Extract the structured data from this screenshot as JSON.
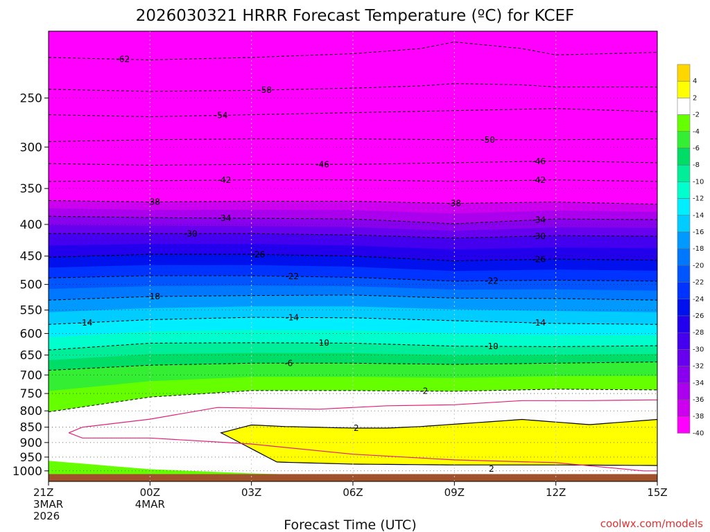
{
  "title": "2026030321 HRRR Forecast Temperature (ºC) for KCEF",
  "xlabel": "Forecast Time (UTC)",
  "credit": "coolwx.com/models",
  "chart_data": {
    "type": "heatmap",
    "title": "2026030321 HRRR Forecast Temperature (ºC) for KCEF",
    "xlabel": "Forecast Time (UTC)",
    "ylabel": "",
    "y_scale": "log",
    "y_reversed": true,
    "ylim": [
      1040,
      195
    ],
    "xlim": [
      0,
      18
    ],
    "x_ticks": [
      {
        "x": 0,
        "lines": [
          "21Z",
          "3MAR",
          "2026"
        ]
      },
      {
        "x": 3,
        "lines": [
          "00Z",
          "4MAR"
        ]
      },
      {
        "x": 6,
        "lines": [
          "03Z"
        ]
      },
      {
        "x": 9,
        "lines": [
          "06Z"
        ]
      },
      {
        "x": 12,
        "lines": [
          "09Z"
        ]
      },
      {
        "x": 15,
        "lines": [
          "12Z"
        ]
      },
      {
        "x": 18,
        "lines": [
          "15Z"
        ]
      }
    ],
    "y_ticks": [
      250,
      300,
      350,
      400,
      450,
      500,
      550,
      600,
      650,
      700,
      750,
      800,
      850,
      900,
      950,
      1000
    ],
    "grid": "dotted",
    "ground_color": "#a0522d",
    "colorbar": {
      "placement": "right",
      "levels": [
        {
          "label": "4",
          "color": "#ffd700"
        },
        {
          "label": "2",
          "color": "#ffff00"
        },
        {
          "label": "-2",
          "color": "#ffffff"
        },
        {
          "label": "-4",
          "color": "#66ff00"
        },
        {
          "label": "-6",
          "color": "#33ee33"
        },
        {
          "label": "-8",
          "color": "#00dd66"
        },
        {
          "label": "-10",
          "color": "#00ee99"
        },
        {
          "label": "-12",
          "color": "#00ffcc"
        },
        {
          "label": "-14",
          "color": "#00eeff"
        },
        {
          "label": "-16",
          "color": "#00ccff"
        },
        {
          "label": "-18",
          "color": "#0099ff"
        },
        {
          "label": "-20",
          "color": "#0077ff"
        },
        {
          "label": "-22",
          "color": "#0055ff"
        },
        {
          "label": "-24",
          "color": "#0033ff"
        },
        {
          "label": "-26",
          "color": "#0011ee"
        },
        {
          "label": "-28",
          "color": "#2200ee"
        },
        {
          "label": "-30",
          "color": "#4400ee"
        },
        {
          "label": "-32",
          "color": "#6600ee"
        },
        {
          "label": "-34",
          "color": "#8800ee"
        },
        {
          "label": "-36",
          "color": "#aa00ee"
        },
        {
          "label": "-38",
          "color": "#cc00ee"
        },
        {
          "label": "-40",
          "color": "#ff00ff"
        }
      ]
    },
    "isotherms": [
      {
        "label": "-62",
        "label_x": 2.2,
        "points": [
          [
            0,
            215
          ],
          [
            3,
            217
          ],
          [
            6,
            215
          ],
          [
            9,
            212
          ],
          [
            11,
            208
          ],
          [
            12,
            203
          ],
          [
            14,
            208
          ],
          [
            15,
            213
          ],
          [
            18,
            211
          ]
        ]
      },
      {
        "label": "-58",
        "label_x": 6.4,
        "points": [
          [
            0,
            242
          ],
          [
            3,
            244
          ],
          [
            6,
            243
          ],
          [
            9,
            241
          ],
          [
            11,
            239
          ],
          [
            12,
            237
          ],
          [
            14,
            238
          ],
          [
            15,
            240
          ],
          [
            18,
            240
          ]
        ]
      },
      {
        "label": "-54",
        "label_x": 5.1,
        "points": [
          [
            0,
            266
          ],
          [
            3,
            268
          ],
          [
            6,
            266
          ],
          [
            9,
            264
          ],
          [
            12,
            262
          ],
          [
            15,
            260
          ],
          [
            18,
            263
          ]
        ]
      },
      {
        "label": "-50",
        "label_x": 13,
        "points": [
          [
            0,
            294
          ],
          [
            3,
            292
          ],
          [
            6,
            291
          ],
          [
            9,
            291
          ],
          [
            12,
            292
          ],
          [
            15,
            292
          ],
          [
            18,
            291
          ]
        ]
      },
      {
        "label": "-46",
        "label_x": 8.1,
        "points": [
          [
            0,
            319
          ],
          [
            3,
            321
          ],
          [
            6,
            320
          ],
          [
            9,
            320
          ],
          [
            12,
            318
          ],
          [
            15,
            316
          ],
          [
            18,
            318
          ]
        ]
      },
      {
        "label": "-46",
        "label_x": 14.5,
        "points": []
      },
      {
        "label": "-42",
        "label_x": 5.2,
        "points": [
          [
            0,
            341
          ],
          [
            3,
            340
          ],
          [
            6,
            339
          ],
          [
            9,
            339
          ],
          [
            12,
            341
          ],
          [
            15,
            339
          ],
          [
            18,
            341
          ]
        ]
      },
      {
        "label": "-42",
        "label_x": 14.5,
        "points": []
      },
      {
        "label": "-38",
        "label_x": 3.1,
        "points": [
          [
            0,
            366
          ],
          [
            3,
            368
          ],
          [
            6,
            367
          ],
          [
            9,
            367
          ],
          [
            12,
            370
          ],
          [
            15,
            368
          ],
          [
            18,
            371
          ]
        ]
      },
      {
        "label": "-38",
        "label_x": 12,
        "points": []
      },
      {
        "label": "-34",
        "label_x": 5.2,
        "points": [
          [
            0,
            388
          ],
          [
            3,
            390
          ],
          [
            6,
            391
          ],
          [
            9,
            392
          ],
          [
            12,
            399
          ],
          [
            15,
            392
          ],
          [
            18,
            393
          ]
        ]
      },
      {
        "label": "-34",
        "label_x": 14.5,
        "points": []
      },
      {
        "label": "-30",
        "label_x": 4.2,
        "points": [
          [
            0,
            414
          ],
          [
            3,
            414
          ],
          [
            6,
            414
          ],
          [
            9,
            416
          ],
          [
            12,
            421
          ],
          [
            15,
            417
          ],
          [
            18,
            418
          ]
        ]
      },
      {
        "label": "-30",
        "label_x": 14.5,
        "points": []
      },
      {
        "label": "-26",
        "label_x": 6.2,
        "points": [
          [
            0,
            452
          ],
          [
            3,
            447
          ],
          [
            6,
            447
          ],
          [
            9,
            450
          ],
          [
            12,
            458
          ],
          [
            15,
            455
          ],
          [
            18,
            457
          ]
        ]
      },
      {
        "label": "-26",
        "label_x": 14.5,
        "points": []
      },
      {
        "label": "-22",
        "label_x": 7.2,
        "points": [
          [
            0,
            488
          ],
          [
            3,
            484
          ],
          [
            6,
            484
          ],
          [
            9,
            487
          ],
          [
            12,
            494
          ],
          [
            15,
            492
          ],
          [
            18,
            494
          ]
        ]
      },
      {
        "label": "-22",
        "label_x": 13.1,
        "points": []
      },
      {
        "label": "-18",
        "label_x": 3.1,
        "points": [
          [
            0,
            530
          ],
          [
            3,
            523
          ],
          [
            6,
            521
          ],
          [
            9,
            520
          ],
          [
            12,
            526
          ],
          [
            15,
            527
          ],
          [
            18,
            530
          ]
        ]
      },
      {
        "label": "-14",
        "label_x": 1.1,
        "points": [
          [
            0,
            580
          ],
          [
            3,
            570
          ],
          [
            6,
            565
          ],
          [
            9,
            566
          ],
          [
            12,
            572
          ],
          [
            15,
            578
          ],
          [
            18,
            580
          ]
        ]
      },
      {
        "label": "-14",
        "label_x": 7.2,
        "points": []
      },
      {
        "label": "-14",
        "label_x": 14.5,
        "points": []
      },
      {
        "label": "-10",
        "label_x": 8.1,
        "points": [
          [
            0,
            638
          ],
          [
            3,
            622
          ],
          [
            6,
            621
          ],
          [
            9,
            622
          ],
          [
            12,
            629
          ],
          [
            15,
            630
          ],
          [
            18,
            628
          ]
        ]
      },
      {
        "label": "-10",
        "label_x": 13.1,
        "points": []
      },
      {
        "label": "-6",
        "label_x": 7.1,
        "points": [
          [
            0,
            688
          ],
          [
            3,
            675
          ],
          [
            6,
            670
          ],
          [
            9,
            670
          ],
          [
            12,
            673
          ],
          [
            15,
            670
          ],
          [
            18,
            667
          ]
        ]
      },
      {
        "label": "-2",
        "label_x": 11.1,
        "points": [
          [
            0,
            803
          ],
          [
            3,
            760
          ],
          [
            6,
            742
          ],
          [
            9,
            742
          ],
          [
            12,
            744
          ],
          [
            15,
            738
          ],
          [
            18,
            740
          ]
        ]
      },
      {
        "label": "2",
        "label_x": 9.1,
        "points": [
          [
            5.1,
            868
          ],
          [
            6,
            843
          ],
          [
            7,
            848
          ],
          [
            9,
            853
          ],
          [
            10,
            853
          ],
          [
            11,
            848
          ],
          [
            14,
            826
          ],
          [
            16,
            842
          ],
          [
            18,
            826
          ]
        ]
      },
      {
        "label": "2",
        "label_x": 13.1,
        "points": [
          [
            0,
            935
          ],
          [
            3,
            965
          ],
          [
            6,
            980
          ],
          [
            9,
            990
          ],
          [
            12,
            993
          ],
          [
            15,
            993
          ],
          [
            18,
            995
          ]
        ]
      }
    ],
    "freezing_line_color": "#e0207a",
    "warm_zone": {
      "color": "#ffff00",
      "label": "2"
    }
  }
}
